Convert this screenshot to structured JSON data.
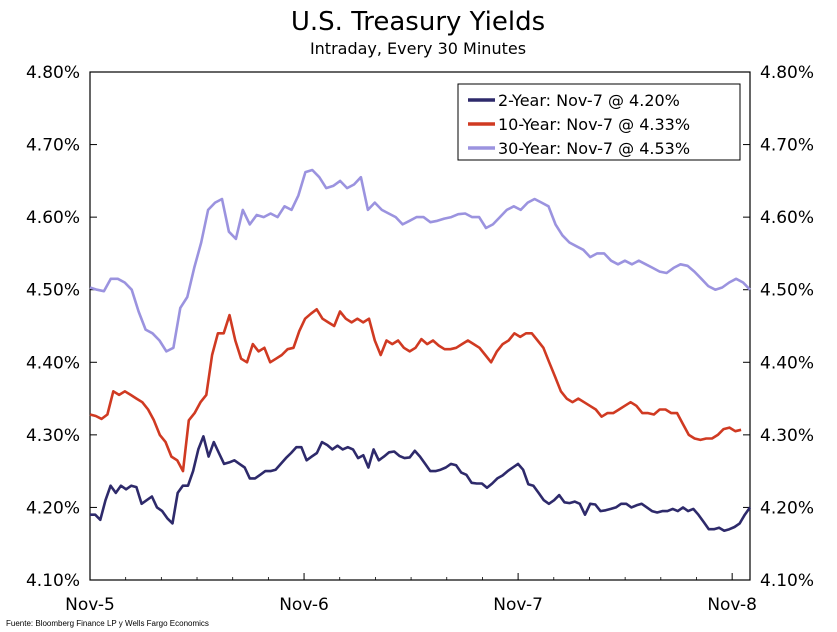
{
  "chart_data": {
    "type": "line",
    "title": "U.S. Treasury Yields",
    "subtitle": "Intraday, Every 30 Minutes",
    "source": "Fuente: Bloomberg Finance LP y Wells Fargo Economics",
    "ylim": [
      4.1,
      4.8
    ],
    "y_ticks": [
      "4.10%",
      "4.20%",
      "4.30%",
      "4.40%",
      "4.50%",
      "4.60%",
      "4.70%",
      "4.80%"
    ],
    "y_tick_values": [
      4.1,
      4.2,
      4.3,
      4.4,
      4.5,
      4.6,
      4.7,
      4.8
    ],
    "x_tick_labels": [
      "Nov-5",
      "Nov-6",
      "Nov-7",
      "Nov-8"
    ],
    "x_tick_positions": [
      0,
      48,
      96,
      144
    ],
    "xlim": [
      0,
      148
    ],
    "legend_position": "top-right",
    "series": [
      {
        "name": "2-Year: Nov-7 @ 4.20%",
        "color": "#2e2a6b",
        "values": [
          4.19,
          4.19,
          4.183,
          4.21,
          4.23,
          4.22,
          4.23,
          4.225,
          4.23,
          4.228,
          4.205,
          4.21,
          4.215,
          4.2,
          4.195,
          4.185,
          4.178,
          4.22,
          4.23,
          4.23,
          4.25,
          4.28,
          4.298,
          4.27,
          4.29,
          4.275,
          4.26,
          4.262,
          4.265,
          4.26,
          4.255,
          4.24,
          4.24,
          4.245,
          4.25,
          4.25,
          4.252,
          4.26,
          4.268,
          4.275,
          4.283,
          4.283,
          4.265,
          4.27,
          4.275,
          4.29,
          4.286,
          4.28,
          4.285,
          4.28,
          4.283,
          4.28,
          4.268,
          4.272,
          4.255,
          4.28,
          4.265,
          4.27,
          4.276,
          4.277,
          4.271,
          4.268,
          4.269,
          4.278,
          4.27,
          4.26,
          4.25,
          4.25,
          4.252,
          4.255,
          4.26,
          4.258,
          4.248,
          4.245,
          4.234,
          4.233,
          4.233,
          4.227,
          4.233,
          4.24,
          4.244,
          4.25,
          4.255,
          4.26,
          4.252,
          4.232,
          4.23,
          4.22,
          4.21,
          4.205,
          4.21,
          4.217,
          4.207,
          4.206,
          4.208,
          4.205,
          4.19,
          4.205,
          4.204,
          4.195,
          4.196,
          4.198,
          4.2,
          4.205,
          4.205,
          4.2,
          4.203,
          4.205,
          4.2,
          4.195,
          4.193,
          4.195,
          4.195,
          4.198,
          4.195,
          4.2,
          4.195,
          4.198,
          4.19,
          4.18,
          4.17,
          4.17,
          4.172,
          4.168,
          4.17,
          4.173,
          4.178,
          4.19,
          4.2
        ],
        "label_x": [
          0,
          2,
          4,
          6,
          8,
          10,
          12,
          14,
          16,
          18,
          20,
          22,
          24,
          26,
          28,
          30,
          32,
          34,
          36,
          38,
          40,
          42,
          44,
          46,
          48,
          50,
          52,
          54,
          56,
          58,
          60,
          62,
          64,
          66,
          68,
          70,
          72,
          74,
          76,
          78,
          80,
          82,
          84,
          86,
          88,
          90,
          92,
          94,
          96,
          98,
          100,
          102,
          104,
          106,
          108,
          110,
          112,
          114,
          116,
          118,
          120,
          122,
          124,
          126,
          128,
          130,
          132,
          134,
          136,
          138,
          140,
          142,
          144,
          146,
          148
        ]
      },
      {
        "name": "10-Year: Nov-7 @ 4.33%",
        "color": "#d03a22",
        "values": [
          4.328,
          4.326,
          4.322,
          4.328,
          4.36,
          4.355,
          4.36,
          4.355,
          4.35,
          4.345,
          4.335,
          4.32,
          4.3,
          4.29,
          4.27,
          4.265,
          4.25,
          4.32,
          4.33,
          4.345,
          4.355,
          4.41,
          4.44,
          4.44,
          4.465,
          4.43,
          4.405,
          4.4,
          4.425,
          4.415,
          4.42,
          4.4,
          4.405,
          4.41,
          4.418,
          4.42,
          4.443,
          4.46,
          4.467,
          4.473,
          4.46,
          4.455,
          4.45,
          4.47,
          4.46,
          4.455,
          4.46,
          4.455,
          4.46,
          4.43,
          4.41,
          4.43,
          4.425,
          4.43,
          4.42,
          4.415,
          4.42,
          4.432,
          4.425,
          4.43,
          4.423,
          4.418,
          4.418,
          4.42,
          4.425,
          4.43,
          4.425,
          4.42,
          4.41,
          4.4,
          4.415,
          4.425,
          4.43,
          4.44,
          4.435,
          4.44,
          4.44,
          4.43,
          4.42,
          4.4,
          4.38,
          4.36,
          4.35,
          4.345,
          4.35,
          4.345,
          4.34,
          4.335,
          4.325,
          4.33,
          4.33,
          4.335,
          4.34,
          4.345,
          4.34,
          4.33,
          4.33,
          4.328,
          4.335,
          4.335,
          4.33,
          4.33,
          4.315,
          4.3,
          4.295,
          4.293,
          4.295,
          4.295,
          4.3,
          4.308,
          4.31,
          4.305,
          4.307
        ],
        "label_x": []
      },
      {
        "name": "30-Year: Nov-7 @ 4.53%",
        "color": "#9b93df",
        "values": [
          4.503,
          4.5,
          4.498,
          4.515,
          4.515,
          4.51,
          4.5,
          4.47,
          4.445,
          4.44,
          4.43,
          4.415,
          4.42,
          4.475,
          4.49,
          4.53,
          4.565,
          4.61,
          4.62,
          4.625,
          4.58,
          4.57,
          4.61,
          4.59,
          4.603,
          4.6,
          4.605,
          4.6,
          4.615,
          4.61,
          4.63,
          4.662,
          4.665,
          4.655,
          4.64,
          4.643,
          4.65,
          4.64,
          4.645,
          4.655,
          4.61,
          4.62,
          4.61,
          4.605,
          4.6,
          4.59,
          4.595,
          4.6,
          4.6,
          4.593,
          4.595,
          4.598,
          4.6,
          4.604,
          4.605,
          4.6,
          4.6,
          4.585,
          4.59,
          4.6,
          4.61,
          4.615,
          4.61,
          4.62,
          4.625,
          4.62,
          4.615,
          4.59,
          4.575,
          4.565,
          4.56,
          4.555,
          4.545,
          4.55,
          4.55,
          4.54,
          4.535,
          4.54,
          4.535,
          4.54,
          4.535,
          4.53,
          4.525,
          4.523,
          4.53,
          4.535,
          4.533,
          4.525,
          4.515,
          4.505,
          4.5,
          4.503,
          4.51,
          4.515,
          4.51,
          4.5
        ],
        "label_x": []
      }
    ]
  }
}
